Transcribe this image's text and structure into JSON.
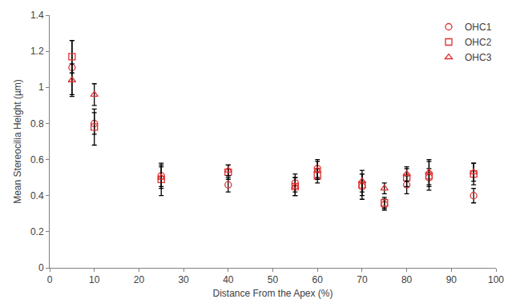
{
  "chart_data": {
    "type": "scatter",
    "x_label": "Distance From the Apex (%)",
    "y_label": "Mean Stereocilia Height (µm)",
    "x": [
      5,
      10,
      25,
      40,
      55,
      60,
      70,
      75,
      80,
      85,
      95
    ],
    "series": [
      {
        "name": "OHC1",
        "color": "#e03030",
        "marker": "circle",
        "values": [
          1.11,
          0.8,
          0.51,
          0.46,
          0.47,
          0.55,
          0.45,
          0.35,
          0.46,
          0.5,
          0.4
        ],
        "errors": [
          0.15,
          0.06,
          0.06,
          0.04,
          0.05,
          0.05,
          0.07,
          0.03,
          0.05,
          0.05,
          0.04
        ]
      },
      {
        "name": "OHC2",
        "color": "#e03030",
        "marker": "square",
        "values": [
          1.17,
          0.78,
          0.49,
          0.53,
          0.45,
          0.51,
          0.46,
          0.36,
          0.5,
          0.51,
          0.52
        ],
        "errors": [
          0.09,
          0.1,
          0.09,
          0.04,
          0.05,
          0.04,
          0.06,
          0.03,
          0.05,
          0.08,
          0.06
        ]
      },
      {
        "name": "OHC3",
        "color": "#e03030",
        "marker": "triangle",
        "values": [
          1.04,
          0.96,
          0.5,
          0.54,
          0.45,
          0.54,
          0.48,
          0.44,
          0.52,
          0.53,
          0.53
        ],
        "errors": [
          0.09,
          0.06,
          0.06,
          0.03,
          0.05,
          0.05,
          0.06,
          0.03,
          0.04,
          0.07,
          0.05
        ]
      }
    ],
    "xlim": [
      0,
      100
    ],
    "xticks": [
      0,
      10,
      20,
      30,
      40,
      50,
      60,
      70,
      80,
      90,
      100
    ],
    "ylim": [
      0,
      1.4
    ],
    "yticks": [
      0,
      0.2,
      0.4,
      0.6,
      0.8,
      1,
      1.2,
      1.4
    ],
    "grid": false,
    "legend": "top right"
  }
}
